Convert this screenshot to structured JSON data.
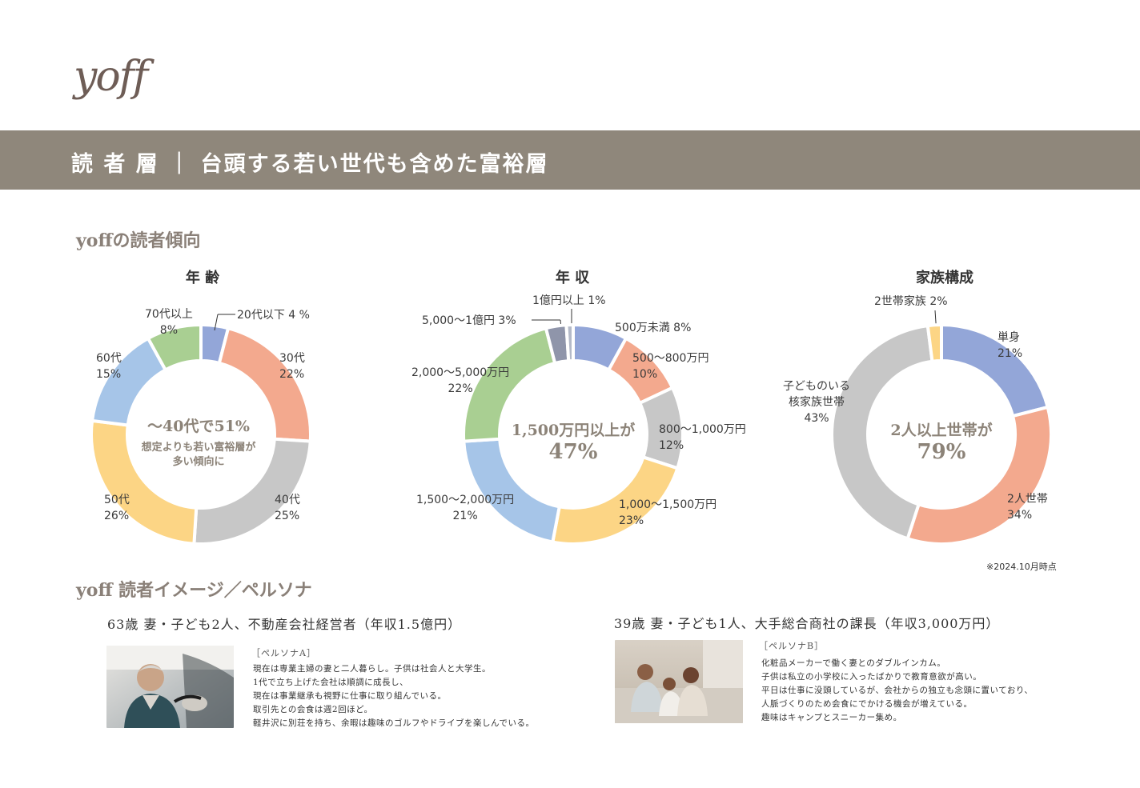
{
  "logo": "yoff",
  "banner_title": "読 者 層 ｜ 台頭する若い世代も含めた富裕層",
  "section1_title": "yoffの読者傾向",
  "section2_title": "yoff 読者イメージ／ペルソナ",
  "note": "※2024.10月時点",
  "chart_data": [
    {
      "type": "pie",
      "title": "年 齢",
      "categories": [
        "20代以下",
        "30代",
        "40代",
        "50代",
        "60代",
        "70代以上"
      ],
      "values": [
        4,
        22,
        25,
        26,
        15,
        8
      ],
      "colors": [
        "#93a6d8",
        "#f3a98e",
        "#c7c7c7",
        "#fcd585",
        "#a6c5e8",
        "#a9cf92"
      ],
      "labels": [
        "20代以下  4 %",
        "30代\n22%",
        "40代\n25%",
        "50代\n26%",
        "60代\n15%",
        "70代以上\n8%"
      ],
      "center_main": "〜40代で51%",
      "center_sub": "想定よりも若い富裕層が\n多い傾向に"
    },
    {
      "type": "pie",
      "title": "年 収",
      "categories": [
        "500万未満",
        "500〜800万円",
        "800〜1,000万円",
        "1,000〜1,500万円",
        "1,500〜2,000万円",
        "2,000〜5,000万円",
        "5,000〜1億円",
        "1億円以上"
      ],
      "values": [
        8,
        10,
        12,
        23,
        21,
        22,
        3,
        1
      ],
      "colors": [
        "#93a6d8",
        "#f3a98e",
        "#c7c7c7",
        "#fcd585",
        "#a6c5e8",
        "#a9cf92",
        "#8f95aa",
        "#b4bac8"
      ],
      "labels": [
        "500万未満 8%",
        "500〜800万円\n10%",
        "800〜1,000万円\n12%",
        "1,000〜1,500万円\n23%",
        "1,500〜2,000万円\n21%",
        "2,000〜5,000万円\n22%",
        "5,000〜1億円 3%",
        "1億円以上 1%"
      ],
      "center_main": "1,500万円以上が",
      "center_big": "47%"
    },
    {
      "type": "pie",
      "title": "家族構成",
      "categories": [
        "単身",
        "2人世帯",
        "子どものいる核家族世帯",
        "2世帯家族"
      ],
      "values": [
        21,
        34,
        43,
        2
      ],
      "colors": [
        "#93a6d8",
        "#f3a98e",
        "#c7c7c7",
        "#fcd585"
      ],
      "labels": [
        "単身\n21%",
        "2人世帯\n34%",
        "子どものいる\n核家族世帯\n43%",
        "2世帯家族 2%"
      ],
      "center_main": "2人以上世帯が",
      "center_big": "79%"
    }
  ],
  "personas": [
    {
      "head": "63歳  妻・子ども2人、不動産会社経営者（年収1.5億円）",
      "tag": "［ペルソナA］",
      "lines": [
        "現在は専業主婦の妻と二人暮らし。子供は社会人と大学生。",
        "1代で立ち上げた会社は順調に成長し、",
        "現在は事業継承も視野に仕事に取り組んでいる。",
        "取引先との会食は週2回ほど。",
        "軽井沢に別荘を持ち、余暇は趣味のゴルフやドライブを楽しんでいる。"
      ]
    },
    {
      "head": "39歳  妻・子ども1人、大手総合商社の課長（年収3,000万円）",
      "tag": "［ペルソナB］",
      "lines": [
        "化粧品メーカーで働く妻とのダブルインカム。",
        "子供は私立の小学校に入ったばかりで教育意欲が高い。",
        "平日は仕事に没頭しているが、会社からの独立も念頭に置いており、",
        "人脈づくりのため会食にでかける機会が増えている。",
        "趣味はキャンプとスニーカー集め。"
      ]
    }
  ]
}
